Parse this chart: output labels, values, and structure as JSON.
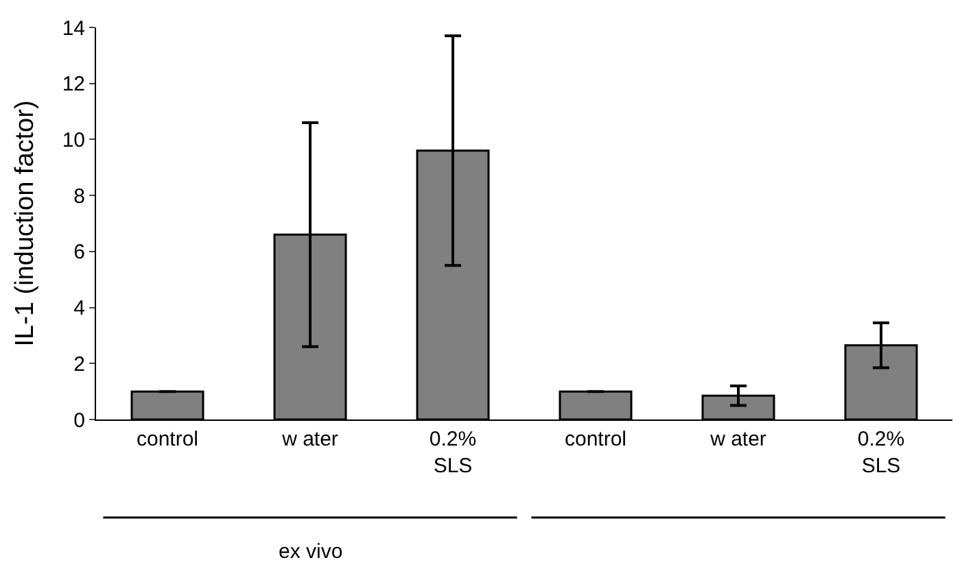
{
  "chart_data": {
    "type": "bar",
    "ylabel": "IL-1 (induction factor)",
    "categories": [
      "control",
      "w ater",
      "0.2%\nSLS",
      "control",
      "w ater",
      "0.2%\nSLS"
    ],
    "values": [
      1,
      6.6,
      9.6,
      1,
      0.85,
      2.65
    ],
    "errors": [
      null,
      4.0,
      4.1,
      null,
      0.35,
      0.8
    ],
    "color": "#808080",
    "ylim": [
      0,
      14
    ],
    "yticks": [
      0,
      2,
      4,
      6,
      8,
      10,
      12,
      14
    ],
    "annotations": [
      "ex vivo"
    ]
  }
}
